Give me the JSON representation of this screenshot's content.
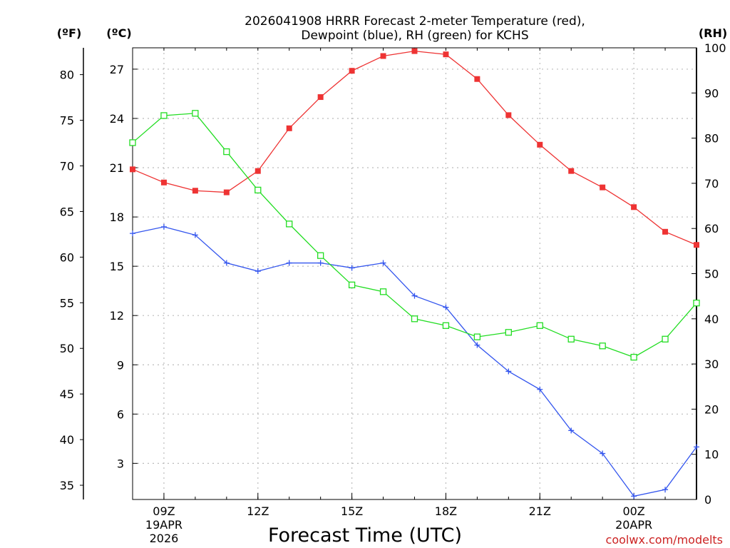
{
  "chart_data": {
    "type": "line",
    "title_line1": "2026041908 HRRR Forecast 2-meter Temperature (red),",
    "title_line2": "Dewpoint (blue), RH (green) for KCHS",
    "xlabel": "Forecast Time (UTC)",
    "watermark": "coolwx.com/modelts",
    "axis_labels": {
      "fahrenheit": "(ºF)",
      "celsius": "(ºC)",
      "rh": "(RH)"
    },
    "x_hours": [
      8,
      9,
      10,
      11,
      12,
      13,
      14,
      15,
      16,
      17,
      18,
      19,
      20,
      21,
      22,
      23,
      24,
      25,
      26
    ],
    "x_ticks": [
      {
        "hour": 9,
        "lines": [
          "09Z",
          "19APR",
          "2026"
        ]
      },
      {
        "hour": 12,
        "lines": [
          "12Z"
        ]
      },
      {
        "hour": 15,
        "lines": [
          "15Z"
        ]
      },
      {
        "hour": 18,
        "lines": [
          "18Z"
        ]
      },
      {
        "hour": 21,
        "lines": [
          "21Z"
        ]
      },
      {
        "hour": 24,
        "lines": [
          "00Z",
          "20APR"
        ]
      }
    ],
    "xlim": [
      8,
      26
    ],
    "celsius_range": [
      0.8,
      28.3
    ],
    "celsius_ticks": [
      3,
      6,
      9,
      12,
      15,
      18,
      21,
      24,
      27
    ],
    "fahrenheit_ticks": [
      35,
      40,
      45,
      50,
      55,
      60,
      65,
      70,
      75,
      80
    ],
    "rh_range": [
      0,
      100
    ],
    "rh_ticks": [
      0,
      10,
      20,
      30,
      40,
      50,
      60,
      70,
      80,
      90,
      100
    ],
    "grid": true,
    "series": [
      {
        "name": "2-meter Temperature",
        "unit": "C",
        "color": "#ee3333",
        "marker": "filled-square",
        "values": [
          20.9,
          20.1,
          19.6,
          19.5,
          20.8,
          23.4,
          25.3,
          26.9,
          27.8,
          28.1,
          27.9,
          26.4,
          24.2,
          22.4,
          20.8,
          19.8,
          18.6,
          17.1,
          16.3
        ]
      },
      {
        "name": "Dewpoint",
        "unit": "C",
        "color": "#3355ee",
        "marker": "plus",
        "values": [
          17.0,
          17.4,
          16.9,
          15.2,
          14.7,
          15.2,
          15.2,
          14.9,
          15.2,
          13.2,
          12.5,
          10.2,
          8.6,
          7.5,
          5.0,
          3.6,
          1.0,
          1.4,
          4.0
        ]
      },
      {
        "name": "Relative Humidity",
        "unit": "%",
        "color": "#22dd22",
        "marker": "open-square",
        "values": [
          79,
          85,
          85.5,
          77,
          68.5,
          61,
          54,
          47.5,
          46,
          40,
          38.5,
          36,
          37,
          38.5,
          35.5,
          34,
          31.5,
          35.5,
          43.5
        ]
      }
    ]
  }
}
